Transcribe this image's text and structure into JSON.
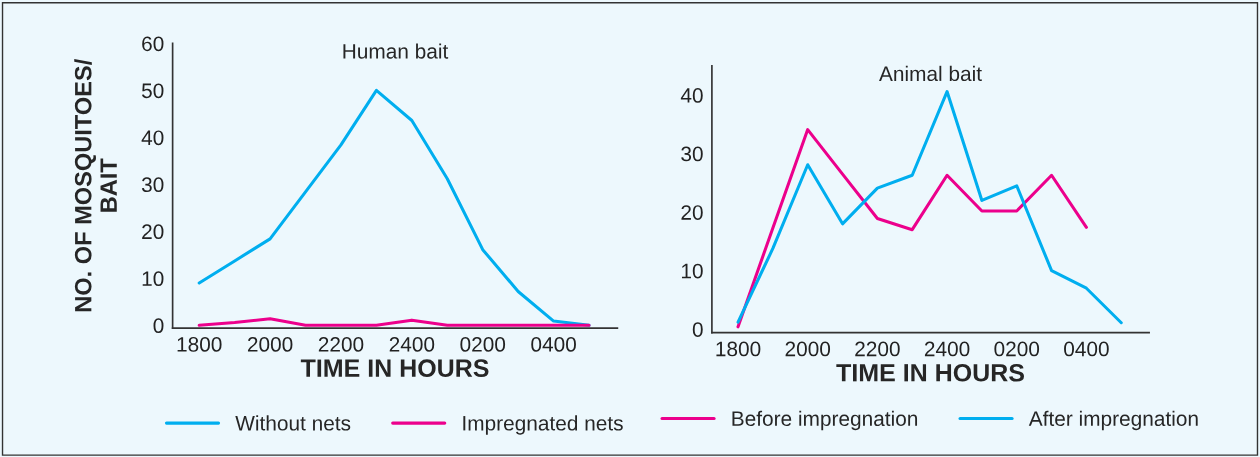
{
  "chart_data": [
    {
      "type": "line",
      "title": "Human bait",
      "ylabel": "NO. OF MOSQUITOES/\nBAIT",
      "xlabel": "TIME IN HOURS",
      "categories": [
        "1800",
        null,
        "2000",
        null,
        "2200",
        null,
        "2400",
        null,
        "0200",
        null,
        "0400",
        null
      ],
      "ylim": [
        -0.6,
        60
      ],
      "yticks": [
        0,
        10,
        20,
        30,
        40,
        50,
        60
      ],
      "series": [
        {
          "name": "Without nets",
          "color": "#00aeef",
          "values": [
            9,
            13.7,
            18.4,
            28.4,
            38.4,
            50,
            43.6,
            31.2,
            16.1,
            7.2,
            0.9,
            0
          ]
        },
        {
          "name": "Impregnated nets",
          "color": "#ec008c",
          "values": [
            0,
            0.6,
            1.4,
            0,
            0,
            0,
            1.1,
            0,
            0,
            0,
            0,
            0
          ]
        }
      ],
      "legend": "bottom",
      "grid": false,
      "marker": "none",
      "line_style": "solid"
    },
    {
      "type": "line",
      "title": "Animal bait",
      "xlabel": "TIME IN HOURS",
      "categories": [
        "1800",
        null,
        "2000",
        null,
        "2200",
        null,
        "2400",
        null,
        "0200",
        null,
        "0400",
        null
      ],
      "ylim": [
        -0.6,
        45
      ],
      "yticks": [
        0,
        10,
        20,
        30,
        40
      ],
      "series": [
        {
          "name": "Before impregnation",
          "color": "#ec008c",
          "values": [
            0.4,
            17.3,
            34.1,
            26.5,
            18.9,
            17,
            26.3,
            20.2,
            20.2,
            26.3,
            17.4,
            null
          ]
        },
        {
          "name": "After impregnation",
          "color": "#00aeef",
          "values": [
            1.2,
            13.8,
            28.1,
            18,
            24.1,
            26.3,
            40.6,
            22,
            24.5,
            10,
            7,
            1.1
          ]
        }
      ],
      "legend": "bottom",
      "grid": false,
      "marker": "none",
      "line_style": "solid"
    }
  ]
}
